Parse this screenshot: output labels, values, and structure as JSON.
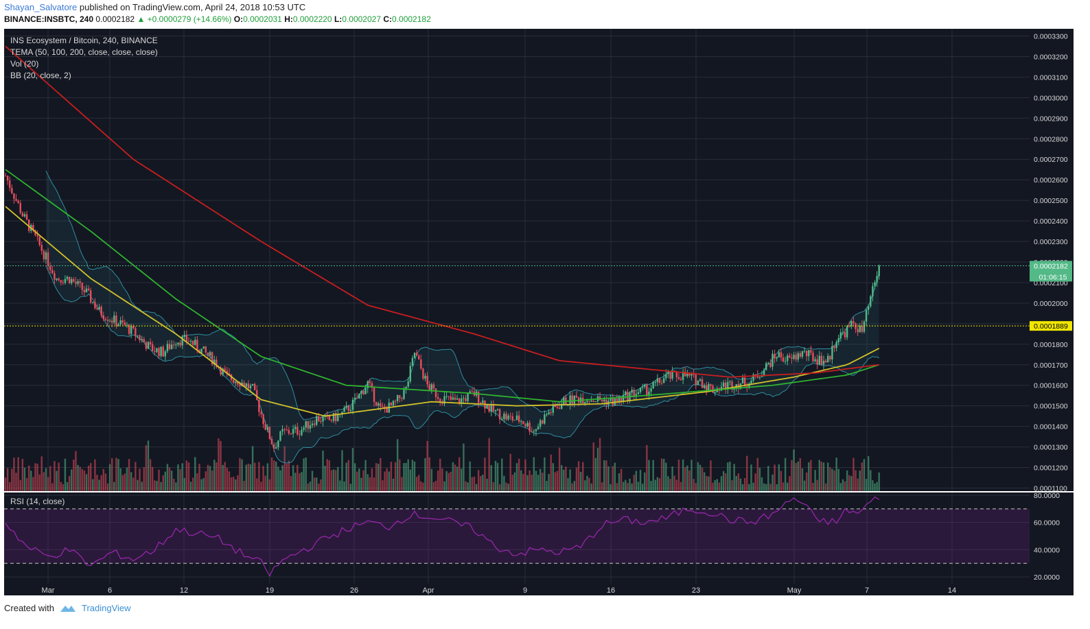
{
  "header": {
    "publisher": "Shayan_Salvatore",
    "published_text": "published on TradingView.com, April 24, 2018 10:53 UTC",
    "symbol": "BINANCE:INSBTC, 240",
    "last": "0.0002182",
    "change": "▲ +0.0000279 (+14.66%)",
    "o_label": "O:",
    "o_value": "0.0002031",
    "h_label": "H:",
    "h_value": "0.0002220",
    "l_label": "L:",
    "l_value": "0.0002027",
    "c_label": "C:",
    "c_value": "0.0002182"
  },
  "legend": {
    "title": "INS Ecosystem / Bitcoin, 240, BINANCE",
    "tema": "TEMA (50, 100, 200, close, close, close)",
    "vol": "Vol (20)",
    "bb": "BB (20, close, 2)",
    "rsi": "RSI (14, close)"
  },
  "footer": {
    "created_with": "Created with",
    "brand": "TradingView"
  },
  "colors": {
    "background": "#131722",
    "grid": "#2a2e39",
    "up": "#53b987",
    "down": "#eb4d5c",
    "tema50": "#d4c22a",
    "tema100": "#2fb32f",
    "tema200": "#c81e1e",
    "bb": "#2f8ea0",
    "rsi": "#9c27b0",
    "support": "#f2e600",
    "last_price": "#53b987"
  },
  "chart_data": {
    "type": "candlestick",
    "price_axis": {
      "ticks": [
        "0.0003300",
        "0.0003200",
        "0.0003100",
        "0.0003000",
        "0.0002900",
        "0.0002800",
        "0.0002700",
        "0.0002600",
        "0.0002500",
        "0.0002400",
        "0.0002300",
        "0.0002200",
        "0.0002100",
        "0.0002000",
        "0.0001900",
        "0.0001800",
        "0.0001700",
        "0.0001600",
        "0.0001500",
        "0.0001400",
        "0.0001300",
        "0.0001200",
        "0.0001100"
      ],
      "range": [
        0.0001085,
        0.0003335
      ]
    },
    "time_axis": {
      "ticks": [
        "Mar",
        "6",
        "12",
        "19",
        "26",
        "Apr",
        "9",
        "16",
        "23",
        "May",
        "7",
        "14"
      ]
    },
    "rsi_axis": {
      "ticks": [
        "80.0000",
        "60.0000",
        "40.0000",
        "20.0000"
      ],
      "range": [
        15,
        82
      ],
      "overbought": 70,
      "oversold": 30
    },
    "last_price_label": "0.0002182",
    "countdown_label": "01:06:15",
    "support_level": 0.0001889,
    "support_label": "0.0001889",
    "price_path": [
      [
        0,
        0.000262
      ],
      [
        8,
        0.000243
      ],
      [
        16,
        0.000228
      ],
      [
        24,
        0.000212
      ],
      [
        30,
        0.000212
      ],
      [
        38,
        0.000205
      ],
      [
        44,
        0.000196
      ],
      [
        50,
        0.000192
      ],
      [
        56,
        0.000189
      ],
      [
        62,
        0.000184
      ],
      [
        68,
        0.000178
      ],
      [
        74,
        0.000176
      ],
      [
        80,
        0.000182
      ],
      [
        86,
        0.000182
      ],
      [
        92,
        0.000177
      ],
      [
        98,
        0.000172
      ],
      [
        104,
        0.000164
      ],
      [
        110,
        0.000162
      ],
      [
        116,
        0.000158
      ],
      [
        122,
        0.00014
      ],
      [
        126,
        0.00013
      ],
      [
        130,
        0.000137
      ],
      [
        138,
        0.000138
      ],
      [
        146,
        0.000144
      ],
      [
        152,
        0.000143
      ],
      [
        158,
        0.000146
      ],
      [
        164,
        0.000152
      ],
      [
        170,
        0.000161
      ],
      [
        176,
        0.000148
      ],
      [
        182,
        0.00015
      ],
      [
        188,
        0.000158
      ],
      [
        192,
        0.000176
      ],
      [
        198,
        0.00016
      ],
      [
        204,
        0.000154
      ],
      [
        212,
        0.000152
      ],
      [
        220,
        0.000156
      ],
      [
        228,
        0.000148
      ],
      [
        236,
        0.000144
      ],
      [
        242,
        0.000143
      ],
      [
        248,
        0.000138
      ],
      [
        254,
        0.000146
      ],
      [
        262,
        0.000152
      ],
      [
        270,
        0.000154
      ],
      [
        278,
        0.000153
      ],
      [
        286,
        0.000152
      ],
      [
        294,
        0.000156
      ],
      [
        302,
        0.000158
      ],
      [
        310,
        0.000164
      ],
      [
        318,
        0.000165
      ],
      [
        326,
        0.000162
      ],
      [
        332,
        0.000158
      ],
      [
        338,
        0.00016
      ],
      [
        344,
        0.000161
      ],
      [
        350,
        0.000162
      ],
      [
        356,
        0.000168
      ],
      [
        362,
        0.000175
      ],
      [
        368,
        0.000172
      ],
      [
        374,
        0.000176
      ],
      [
        380,
        0.000173
      ],
      [
        386,
        0.000172
      ],
      [
        390,
        0.000183
      ],
      [
        394,
        0.000186
      ],
      [
        398,
        0.00019
      ],
      [
        402,
        0.000186
      ],
      [
        406,
        0.000202
      ],
      [
        410,
        0.000218
      ]
    ],
    "series": [
      {
        "name": "TEMA 50",
        "values": [
          [
            0,
            0.000247
          ],
          [
            40,
            0.000212
          ],
          [
            80,
            0.000185
          ],
          [
            120,
            0.000153
          ],
          [
            150,
            0.000145
          ],
          [
            200,
            0.000152
          ],
          [
            240,
            0.00015
          ],
          [
            280,
            0.000151
          ],
          [
            330,
            0.000157
          ],
          [
            370,
            0.000164
          ],
          [
            395,
            0.00017
          ],
          [
            410,
            0.000178
          ]
        ]
      },
      {
        "name": "TEMA 100",
        "values": [
          [
            0,
            0.000265
          ],
          [
            40,
            0.000235
          ],
          [
            80,
            0.000202
          ],
          [
            120,
            0.000174
          ],
          [
            160,
            0.00016
          ],
          [
            220,
            0.000156
          ],
          [
            260,
            0.000152
          ],
          [
            300,
            0.000155
          ],
          [
            360,
            0.00016
          ],
          [
            395,
            0.000165
          ],
          [
            410,
            0.00017
          ]
        ]
      },
      {
        "name": "TEMA 200",
        "values": [
          [
            0,
            0.000325
          ],
          [
            60,
            0.00027
          ],
          [
            120,
            0.00023
          ],
          [
            170,
            0.000199
          ],
          [
            220,
            0.000185
          ],
          [
            260,
            0.000172
          ],
          [
            300,
            0.000168
          ],
          [
            340,
            0.000164
          ],
          [
            380,
            0.000166
          ],
          [
            410,
            0.00017
          ]
        ]
      },
      {
        "name": "RSI",
        "values": [
          [
            0,
            60
          ],
          [
            10,
            42
          ],
          [
            20,
            35
          ],
          [
            30,
            40
          ],
          [
            40,
            28
          ],
          [
            50,
            38
          ],
          [
            60,
            33
          ],
          [
            70,
            40
          ],
          [
            80,
            55
          ],
          [
            90,
            52
          ],
          [
            100,
            48
          ],
          [
            110,
            38
          ],
          [
            120,
            30
          ],
          [
            124,
            22
          ],
          [
            130,
            32
          ],
          [
            140,
            40
          ],
          [
            150,
            48
          ],
          [
            160,
            55
          ],
          [
            170,
            60
          ],
          [
            180,
            57
          ],
          [
            190,
            66
          ],
          [
            200,
            64
          ],
          [
            210,
            60
          ],
          [
            220,
            55
          ],
          [
            230,
            42
          ],
          [
            240,
            37
          ],
          [
            250,
            40
          ],
          [
            260,
            38
          ],
          [
            270,
            42
          ],
          [
            280,
            58
          ],
          [
            290,
            62
          ],
          [
            300,
            60
          ],
          [
            310,
            63
          ],
          [
            320,
            70
          ],
          [
            330,
            68
          ],
          [
            340,
            62
          ],
          [
            350,
            60
          ],
          [
            360,
            66
          ],
          [
            370,
            78
          ],
          [
            376,
            72
          ],
          [
            380,
            62
          ],
          [
            390,
            60
          ],
          [
            395,
            70
          ],
          [
            400,
            66
          ],
          [
            406,
            75
          ],
          [
            410,
            78
          ]
        ]
      }
    ]
  }
}
